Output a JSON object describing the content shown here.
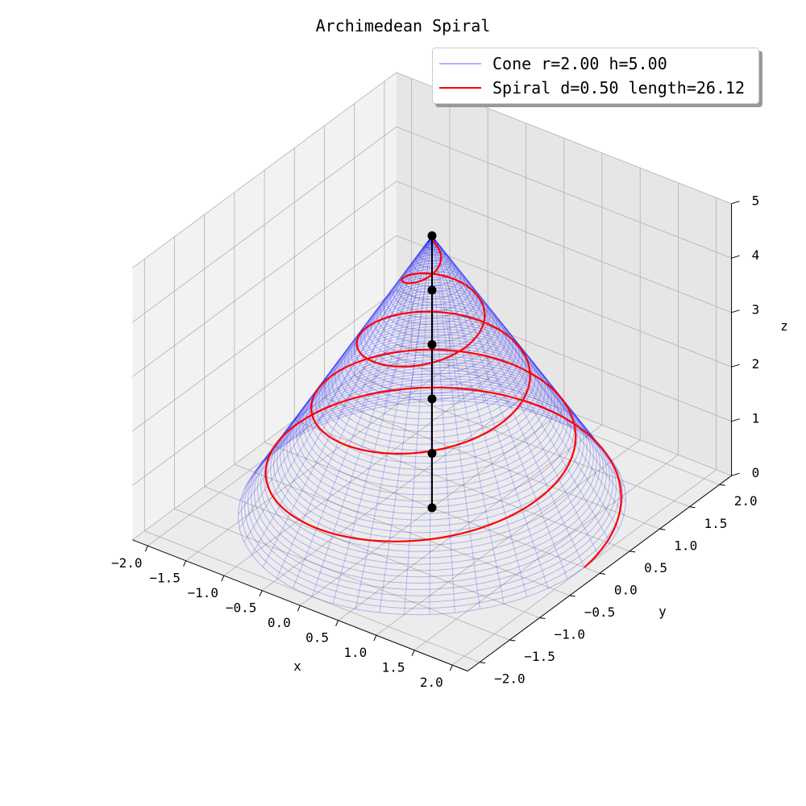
{
  "chart_data": {
    "type": "line",
    "projection": "3d",
    "title": "Archimedean Spiral",
    "xlabel": "x",
    "ylabel": "y",
    "zlabel": "z",
    "xlim": [
      -2.2,
      2.2
    ],
    "ylim": [
      -2.2,
      2.2
    ],
    "zlim": [
      0,
      5
    ],
    "xticks": [
      "−2.0",
      "−1.5",
      "−1.0",
      "−0.5",
      "0.0",
      "0.5",
      "1.0",
      "1.5",
      "2.0"
    ],
    "yticks": [
      "−2.0",
      "−1.5",
      "−1.0",
      "−0.5",
      "0.0",
      "0.5",
      "1.0",
      "1.5",
      "2.0"
    ],
    "zticks": [
      "0",
      "1",
      "2",
      "3",
      "4",
      "5"
    ],
    "grid": true,
    "legend_position": "top-right",
    "series": [
      {
        "name": "Cone r=2.00 h=5.00",
        "kind": "surface-wireframe",
        "color": "#0000ff",
        "radius": 2.0,
        "height": 5.0
      },
      {
        "name": "Spiral d=0.50 length=26.12",
        "kind": "spiral",
        "color": "#ff0000",
        "pitch": 0.5,
        "length": 26.12,
        "turns": 4.25
      },
      {
        "name": "",
        "kind": "axis-points",
        "color": "#000000",
        "z": [
          0,
          1,
          2,
          3,
          4,
          5
        ]
      }
    ]
  }
}
